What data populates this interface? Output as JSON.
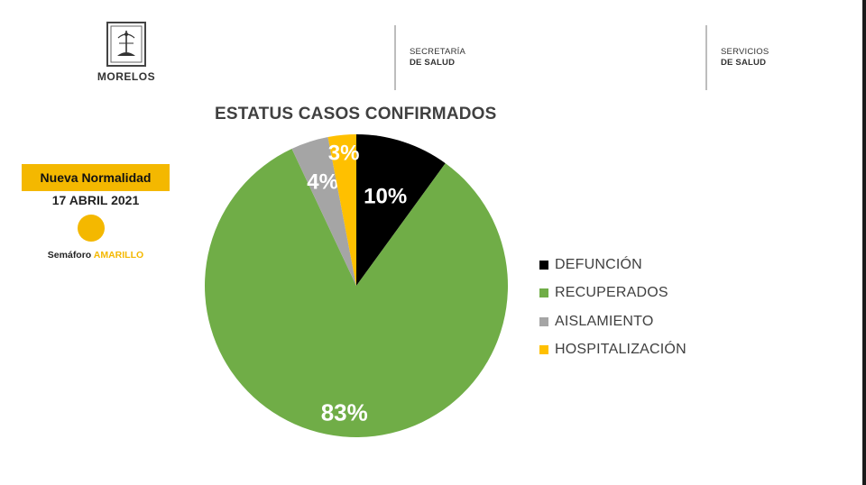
{
  "header": {
    "state_logo_text": "MORELOS",
    "agency_1": {
      "line1": "SECRETARÍA",
      "line2": "DE SALUD"
    },
    "agency_2": {
      "line1": "SERVICIOS",
      "line2": "DE SALUD"
    }
  },
  "status_panel": {
    "badge": "Nueva Normalidad",
    "date": "17 ABRIL 2021",
    "semaforo_prefix": "Semáforo ",
    "semaforo_color": "AMARILLO",
    "semaforo_hex": "#f4b800"
  },
  "chart_data": {
    "type": "pie",
    "title": "ESTATUS CASOS CONFIRMADOS",
    "slices": [
      {
        "label": "DEFUNCIÓN",
        "value": 10,
        "display": "10%",
        "color": "#000000",
        "text_color": "#ffffff"
      },
      {
        "label": "RECUPERADOS",
        "value": 83,
        "display": "83%",
        "color": "#70ad47",
        "text_color": "#ffffff"
      },
      {
        "label": "AISLAMIENTO",
        "value": 4,
        "display": "4%",
        "color": "#a5a5a5",
        "text_color": "#ffffff"
      },
      {
        "label": "HOSPITALIZACIÓN",
        "value": 3,
        "display": "3%",
        "color": "#ffc000",
        "text_color": "#ffffff"
      }
    ],
    "start_angle": "12 o'clock",
    "direction": "clockwise",
    "legend_position": "right"
  }
}
